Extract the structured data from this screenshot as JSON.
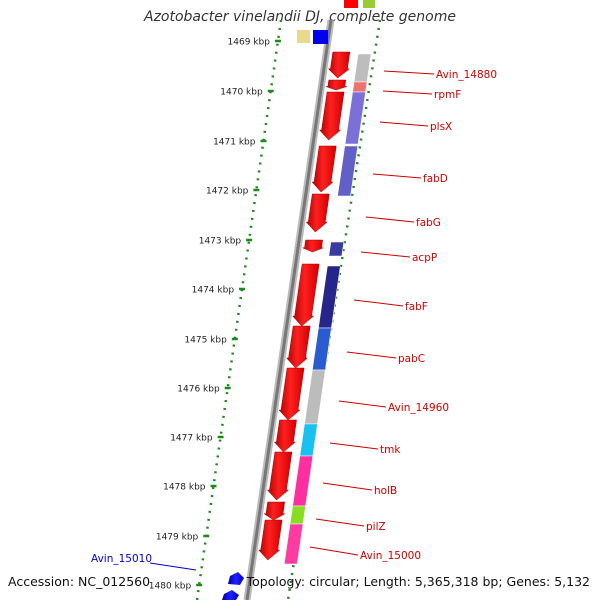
{
  "title": "Azotobacter vinelandii DJ, complete genome",
  "footer": {
    "accession": "Accession: NC_012560",
    "topology": "Topology: circular; Length: 5,365,318 bp; Genes: 5,132"
  },
  "scale": {
    "unit": "kbp",
    "ticks": [
      "1469 kbp",
      "1470 kbp",
      "1471 kbp",
      "1472 kbp",
      "1473 kbp",
      "1474 kbp",
      "1475 kbp",
      "1476 kbp",
      "1477 kbp",
      "1478 kbp",
      "1479 kbp",
      "1480 kbp"
    ]
  },
  "genes": [
    {
      "name": "Avin_14880",
      "color": "#cc0000"
    },
    {
      "name": "rpmF",
      "color": "#cc0000"
    },
    {
      "name": "plsX",
      "color": "#cc0000"
    },
    {
      "name": "fabD",
      "color": "#cc0000"
    },
    {
      "name": "fabG",
      "color": "#cc0000"
    },
    {
      "name": "acpP",
      "color": "#cc0000"
    },
    {
      "name": "fabF",
      "color": "#cc0000"
    },
    {
      "name": "pabC",
      "color": "#cc0000"
    },
    {
      "name": "Avin_14960",
      "color": "#cc0000"
    },
    {
      "name": "tmk",
      "color": "#cc0000"
    },
    {
      "name": "holB",
      "color": "#cc0000"
    },
    {
      "name": "pilZ",
      "color": "#cc0000"
    },
    {
      "name": "Avin_15000",
      "color": "#cc0000"
    },
    {
      "name": "Avin_15010",
      "color": "#0000cc"
    }
  ],
  "colors": {
    "forward_gene": "#ff0000",
    "reverse_gene": "#0000ff",
    "scale_dots": "#1a8a1a",
    "backbone": "#888888"
  }
}
